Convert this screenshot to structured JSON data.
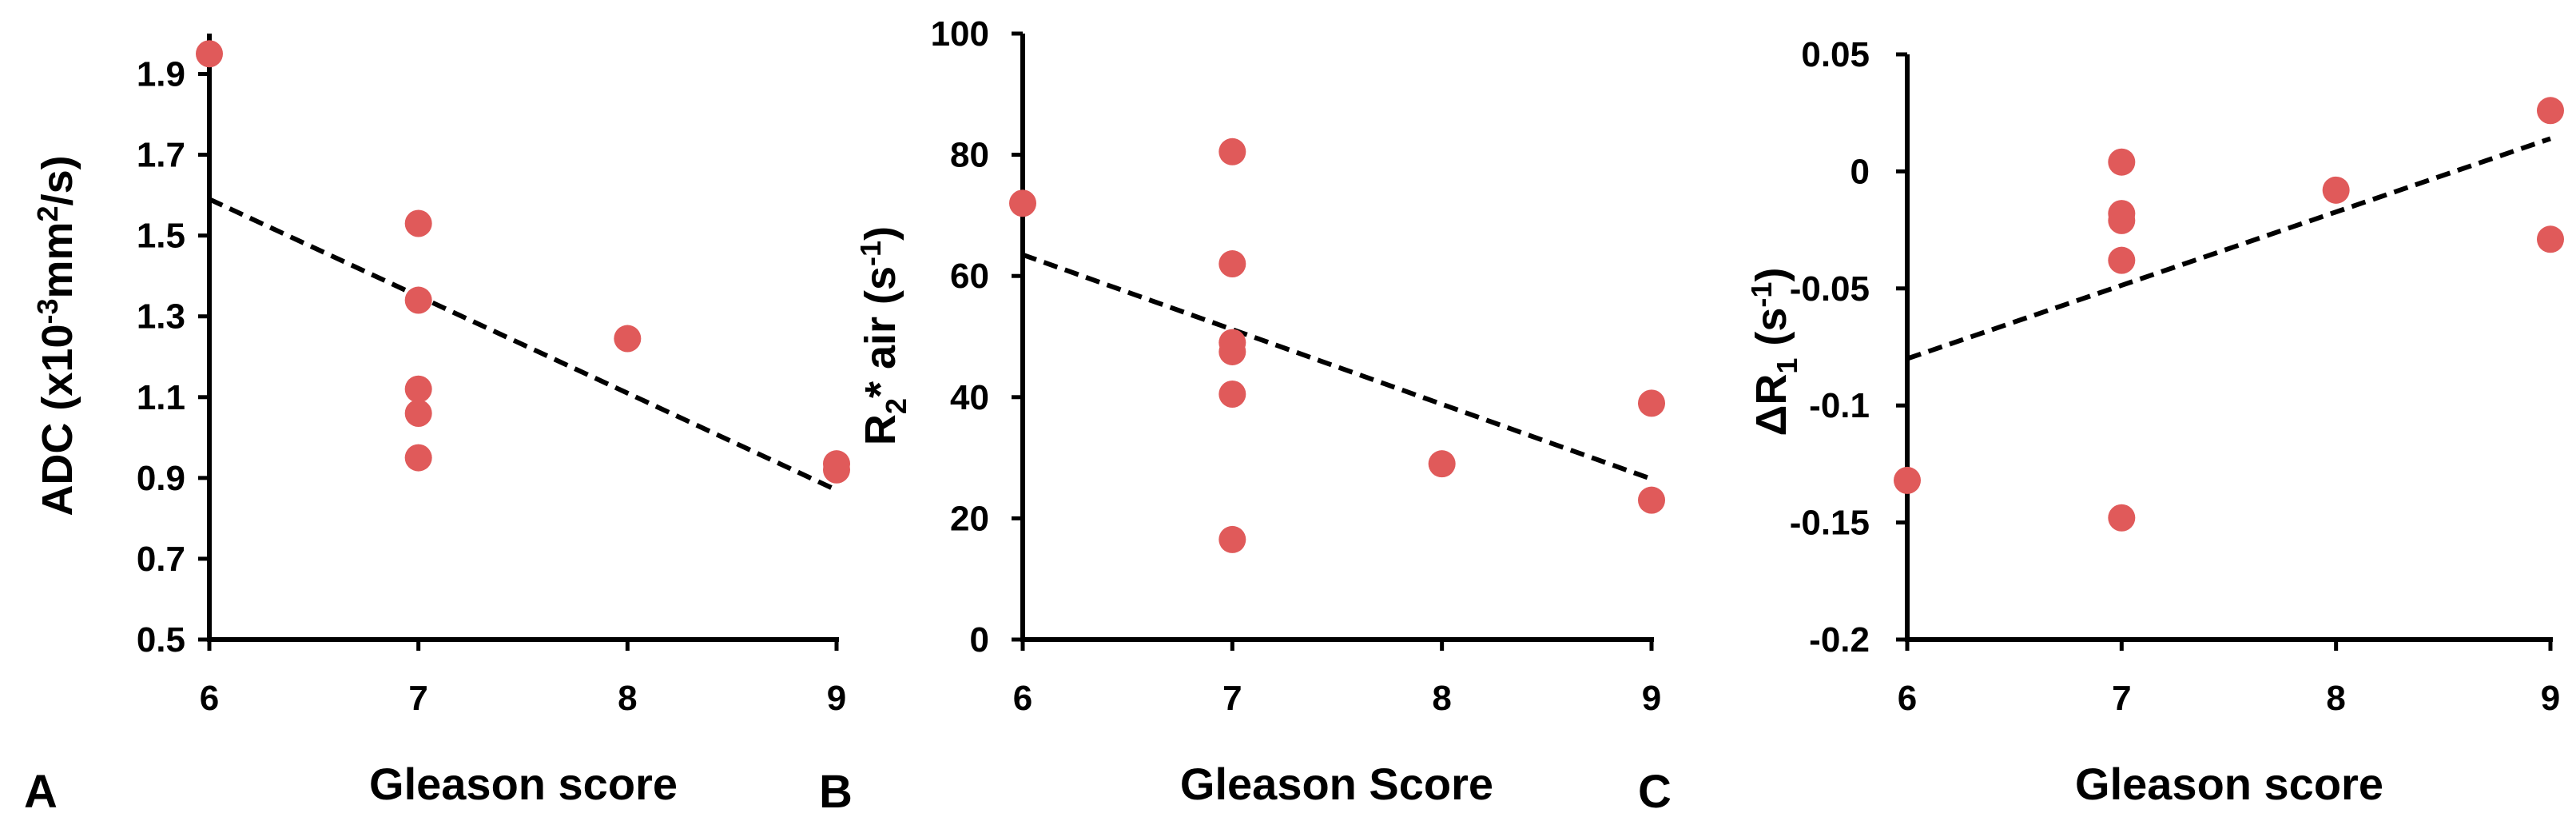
{
  "chart_data": [
    {
      "type": "scatter",
      "panel_label": "A",
      "xlabel": "Gleason score",
      "ylabel": {
        "main": "ADC (x10",
        "sup1": "-3",
        "mid": "mm",
        "sup2": "2",
        "end": "/s)"
      },
      "xlim": [
        6,
        9
      ],
      "ylim": [
        0.5,
        2.0
      ],
      "xticks": [
        6,
        7,
        8,
        9
      ],
      "xtick_labels": [
        "6",
        "7",
        "8",
        "9"
      ],
      "yticks": [
        0.5,
        0.7,
        0.9,
        1.1,
        1.3,
        1.5,
        1.7,
        1.9
      ],
      "ytick_labels": [
        "0.5",
        "0.7",
        "0.9",
        "1.1",
        "1.3",
        "1.5",
        "1.7",
        "1.9"
      ],
      "points": [
        [
          6,
          1.95
        ],
        [
          7,
          1.53
        ],
        [
          7,
          1.34
        ],
        [
          7,
          1.12
        ],
        [
          7,
          1.06
        ],
        [
          7,
          0.95
        ],
        [
          8,
          1.245
        ],
        [
          9,
          0.935
        ],
        [
          9,
          0.92
        ]
      ],
      "trendline": [
        [
          6,
          1.59
        ],
        [
          9,
          0.87
        ]
      ],
      "marker_color": "#e05a5a"
    },
    {
      "type": "scatter",
      "panel_label": "B",
      "xlabel": "Gleason Score",
      "ylabel": {
        "main": "R",
        "sub": "2",
        "mid": "* air (s",
        "sup": "-1",
        "end": ")"
      },
      "xlim": [
        6,
        9
      ],
      "ylim": [
        0,
        100
      ],
      "xticks": [
        6,
        7,
        8,
        9
      ],
      "xtick_labels": [
        "6",
        "7",
        "8",
        "9"
      ],
      "yticks": [
        0,
        20,
        40,
        60,
        80,
        100
      ],
      "ytick_labels": [
        "0",
        "20",
        "40",
        "60",
        "80",
        "100"
      ],
      "points": [
        [
          6,
          72
        ],
        [
          7,
          80.5
        ],
        [
          7,
          62
        ],
        [
          7,
          49
        ],
        [
          7,
          47.5
        ],
        [
          7,
          40.5
        ],
        [
          7,
          16.5
        ],
        [
          8,
          29
        ],
        [
          9,
          39
        ],
        [
          9,
          23
        ]
      ],
      "trendline": [
        [
          6,
          63.5
        ],
        [
          9,
          26.5
        ]
      ],
      "marker_color": "#e05a5a"
    },
    {
      "type": "scatter",
      "panel_label": "C",
      "xlabel": "Gleason score",
      "ylabel": {
        "main": "ΔR",
        "sub": "1",
        "mid": " (s",
        "sup": "-1",
        "end": ")"
      },
      "xlim": [
        6,
        9
      ],
      "ylim": [
        -0.2,
        0.05
      ],
      "xticks": [
        6,
        7,
        8,
        9
      ],
      "xtick_labels": [
        "6",
        "7",
        "8",
        "9"
      ],
      "yticks": [
        -0.2,
        -0.15,
        -0.1,
        -0.05,
        0,
        0.05
      ],
      "ytick_labels": [
        "-0.2",
        "-0.15",
        "-0.1",
        "-0.05",
        "0",
        "0.05"
      ],
      "points": [
        [
          6,
          -0.132
        ],
        [
          7,
          0.004
        ],
        [
          7,
          -0.018
        ],
        [
          7,
          -0.021
        ],
        [
          7,
          -0.038
        ],
        [
          7,
          -0.148
        ],
        [
          8,
          -0.008
        ],
        [
          9,
          0.026
        ],
        [
          9,
          -0.029
        ]
      ],
      "trendline": [
        [
          6,
          -0.08
        ],
        [
          9,
          0.014
        ]
      ],
      "marker_color": "#e05a5a"
    }
  ]
}
